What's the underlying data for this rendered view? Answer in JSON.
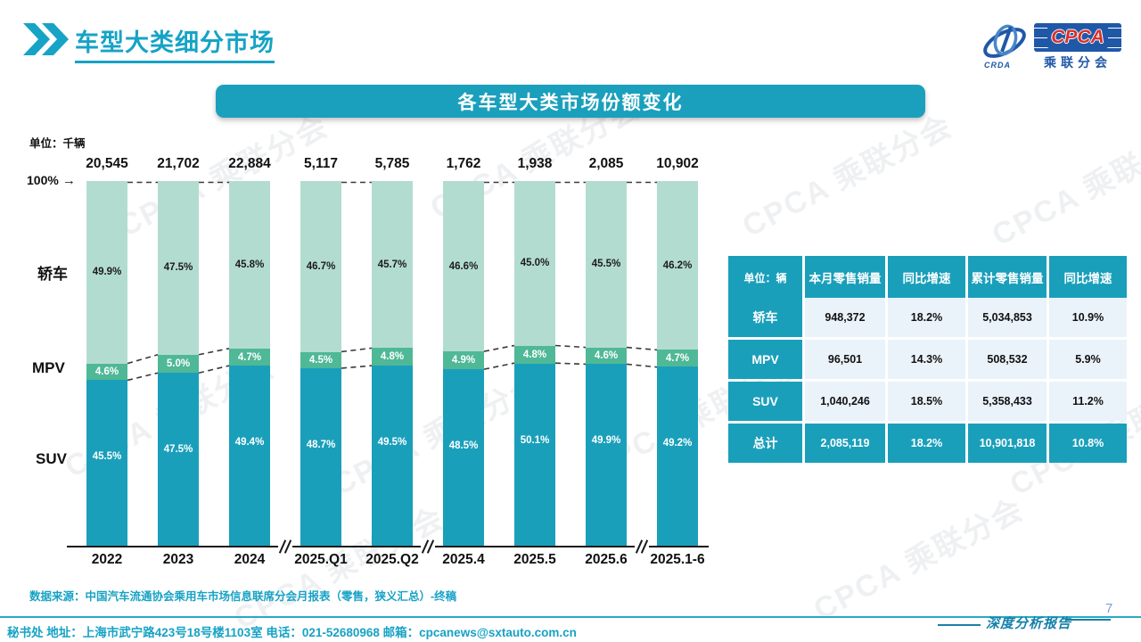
{
  "header": {
    "title": "车型大类细分市场"
  },
  "logo": {
    "cpca": "CPCA",
    "subtitle": "乘联分会",
    "crda": "CRDA"
  },
  "banner": {
    "title": "各车型大类市场份额变化"
  },
  "chart": {
    "unit_label": "单位：千辆",
    "y_top_label": "100%",
    "side_labels": [
      "轿车",
      "MPV",
      "SUV"
    ]
  },
  "chart_data": {
    "type": "bar",
    "subtype": "stacked-100-percent",
    "title": "各车型大类市场份额变化",
    "unit": "千辆",
    "categories": [
      "2022",
      "2023",
      "2024",
      "2025.Q1",
      "2025.Q2",
      "2025.4",
      "2025.5",
      "2025.6",
      "2025.1-6"
    ],
    "totals": [
      "20,545",
      "21,702",
      "22,884",
      "5,117",
      "5,785",
      "1,762",
      "1,938",
      "2,085",
      "10,902"
    ],
    "series": [
      {
        "name": "SUV",
        "color": "#1A9FBB",
        "values": [
          45.5,
          47.5,
          49.4,
          48.7,
          49.5,
          48.5,
          50.1,
          49.9,
          49.2
        ]
      },
      {
        "name": "MPV",
        "color": "#4FB896",
        "values": [
          4.6,
          5.0,
          4.7,
          4.5,
          4.8,
          4.9,
          4.8,
          4.6,
          4.7
        ]
      },
      {
        "name": "轿车",
        "color": "#B3DCD1",
        "values": [
          49.9,
          47.5,
          45.8,
          46.7,
          45.7,
          46.6,
          45.0,
          45.5,
          46.2
        ]
      }
    ],
    "ylim": [
      0,
      100
    ],
    "legend_position": "left-side-labels",
    "grid": false,
    "connected_pairs": [
      [
        0,
        1
      ],
      [
        1,
        2
      ],
      [
        3,
        4
      ],
      [
        5,
        6
      ],
      [
        6,
        7
      ],
      [
        7,
        8
      ]
    ],
    "axis_breaks_after_index": [
      2,
      4,
      7
    ]
  },
  "table": {
    "headers": [
      "单位：辆",
      "本月零售销量",
      "同比增速",
      "累计零售销量",
      "同比增速"
    ],
    "rows": [
      {
        "label": "轿车",
        "values": [
          "948,372",
          "18.2%",
          "5,034,853",
          "10.9%"
        ],
        "highlight": false
      },
      {
        "label": "MPV",
        "values": [
          "96,501",
          "14.3%",
          "508,532",
          "5.9%"
        ],
        "highlight": false
      },
      {
        "label": "SUV",
        "values": [
          "1,040,246",
          "18.5%",
          "5,358,433",
          "11.2%"
        ],
        "highlight": false
      },
      {
        "label": "总计",
        "values": [
          "2,085,119",
          "18.2%",
          "10,901,818",
          "10.8%"
        ],
        "highlight": true
      }
    ]
  },
  "source_note": "数据来源：中国汽车流通协会乘用车市场信息联席分会月报表（零售，狭义汇总）-终稿",
  "footer": {
    "info": "秘书处  地址：上海市武宁路423号18号楼1103室 电话：021-52680968   邮箱：cpcanews@sxtauto.com.cn",
    "report_label": "深度分析报告",
    "page_number": "7"
  },
  "watermark_text": "CPCA 乘联分会",
  "colors": {
    "teal": "#1A9FBB",
    "mpv_green": "#4FB896",
    "sedan_green": "#B3DCD1",
    "table_cell_bg": "#EAF2FA",
    "accent_text": "#16A3C6",
    "connector": "#3a3a3a"
  }
}
